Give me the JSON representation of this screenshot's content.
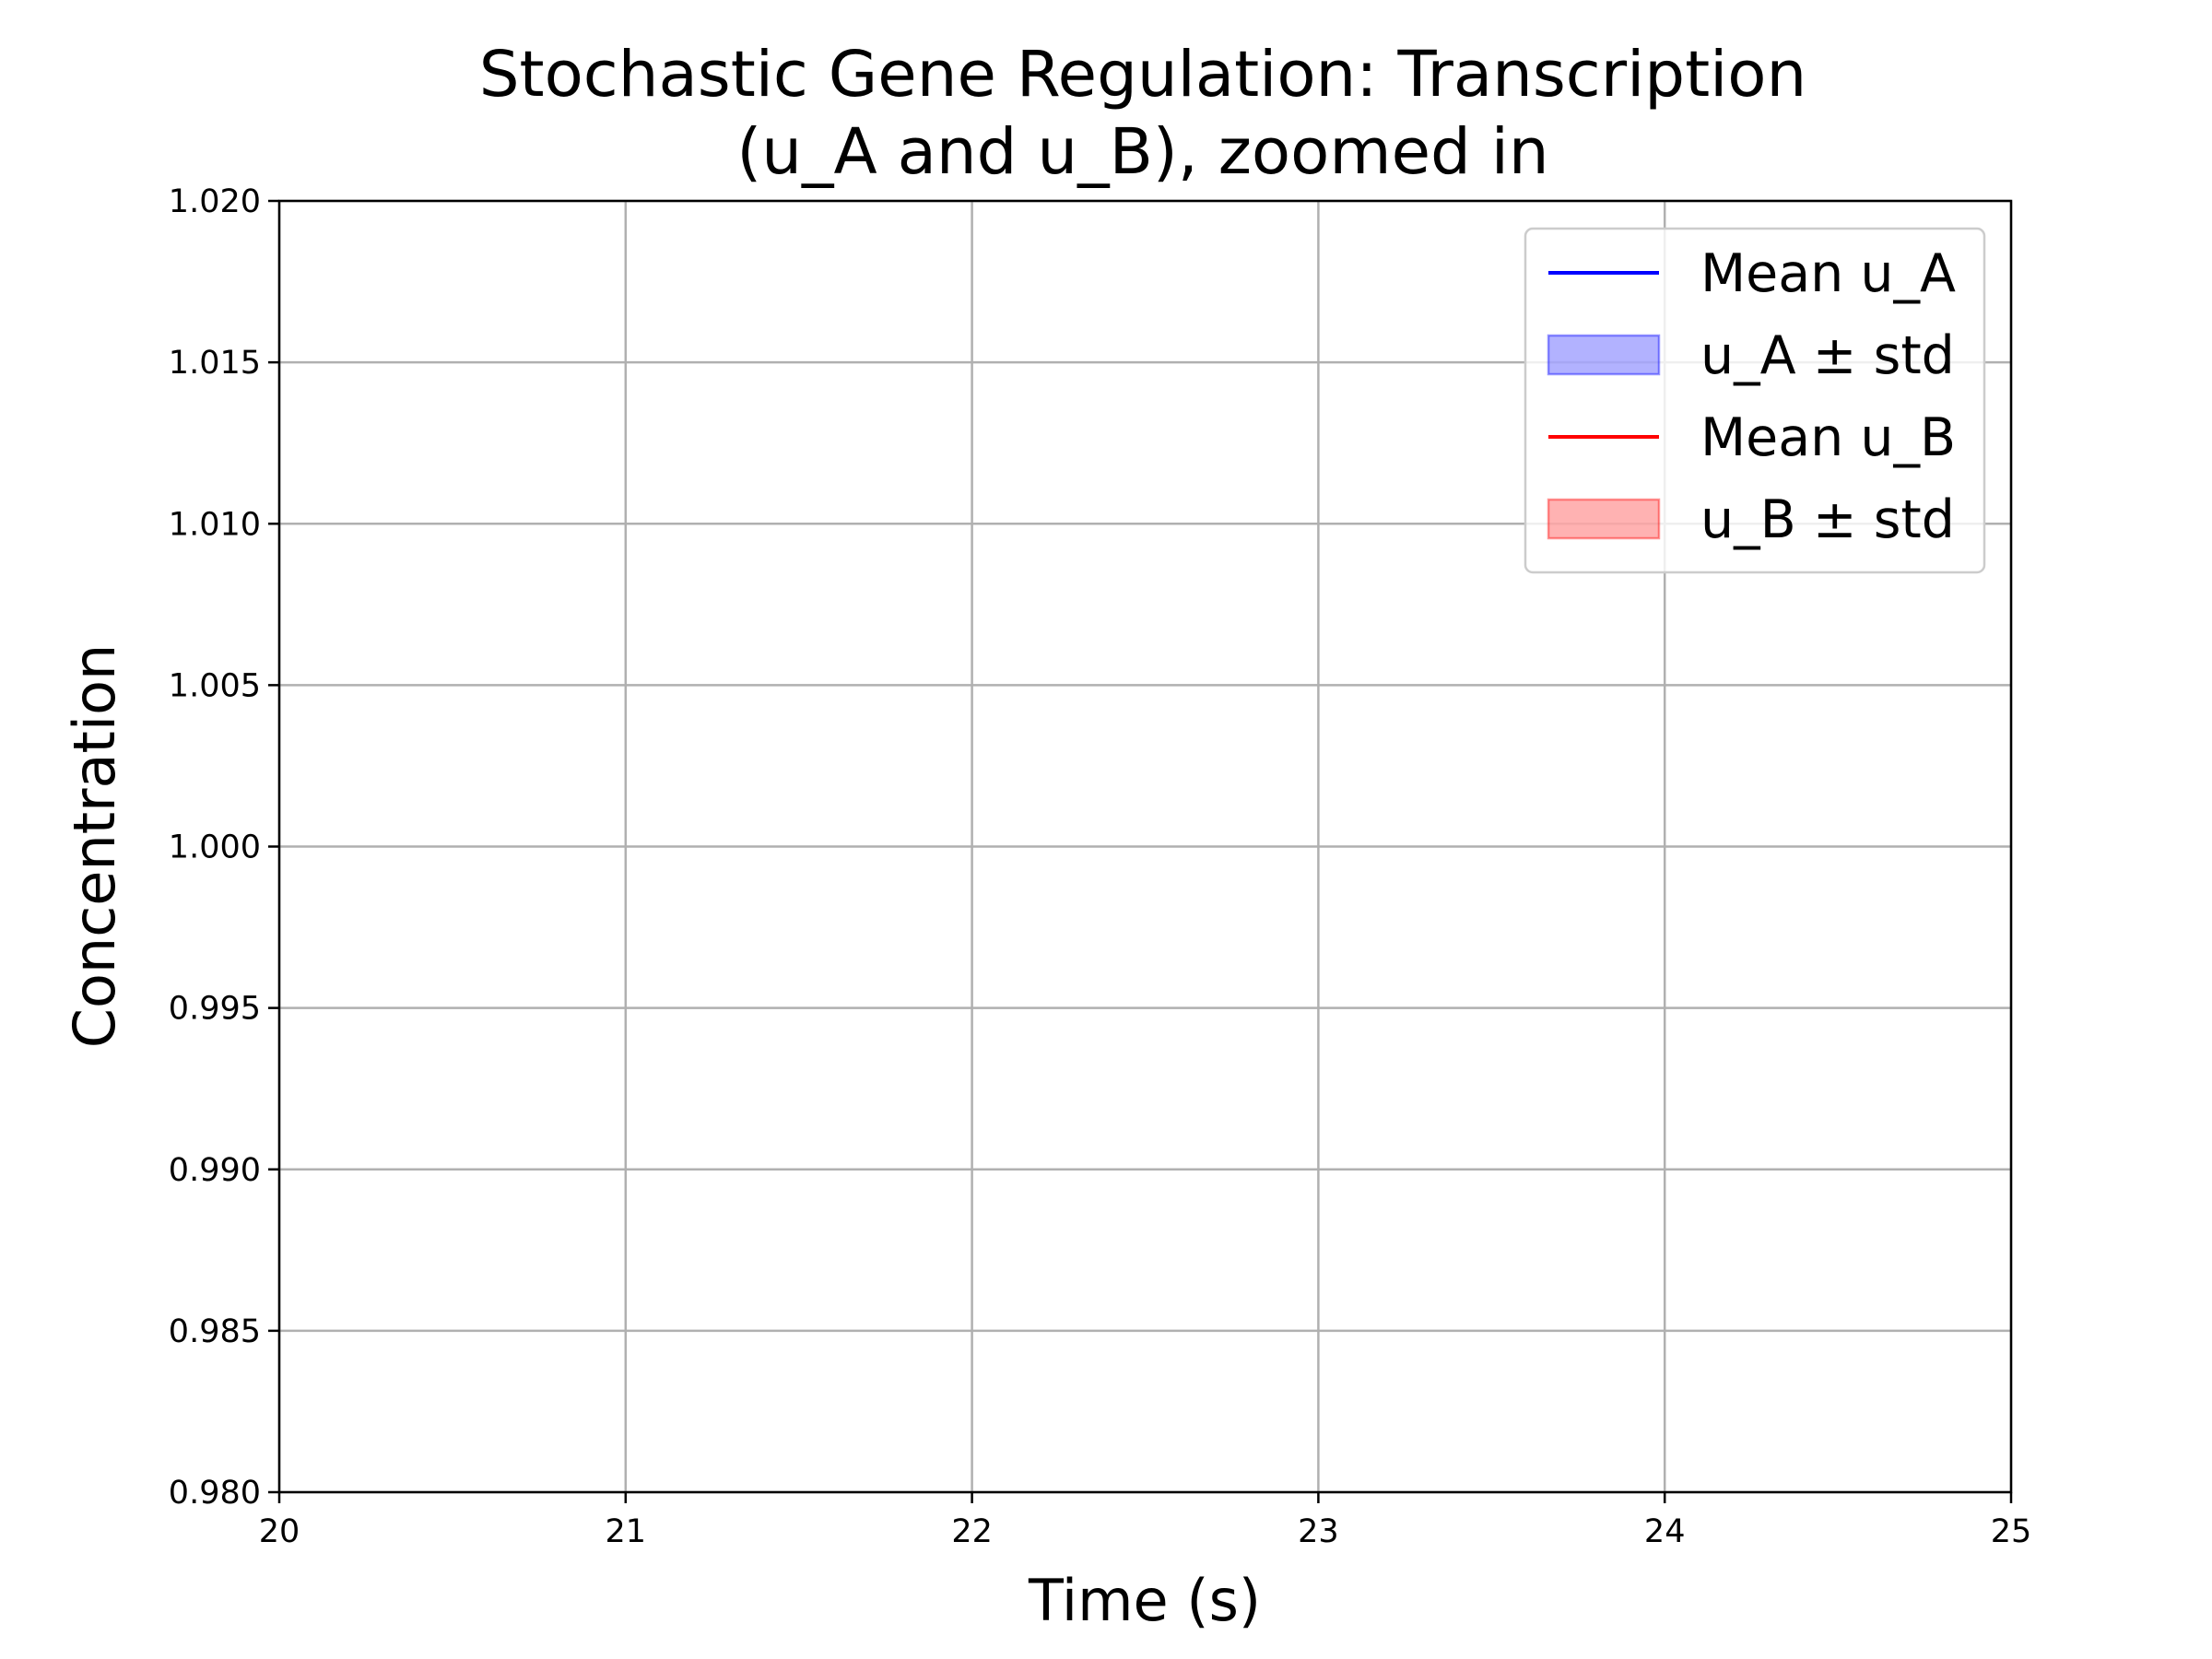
{
  "chart_data": {
    "type": "line",
    "title_lines": [
      "Stochastic Gene Regulation: Transcription",
      "(u_A and u_B), zoomed in"
    ],
    "xlabel": "Time (s)",
    "ylabel": "Concentration",
    "xlim": [
      20,
      25
    ],
    "ylim": [
      0.98,
      1.02
    ],
    "xticks": [
      "20",
      "21",
      "22",
      "23",
      "24",
      "25"
    ],
    "yticks": [
      "0.980",
      "0.985",
      "0.990",
      "0.995",
      "1.000",
      "1.005",
      "1.010",
      "1.015",
      "1.020"
    ],
    "grid": true,
    "legend_position": "top-right",
    "series": [
      {
        "name": "Mean u_A",
        "kind": "line",
        "color": "#0000ff",
        "x": [],
        "y": []
      },
      {
        "name": "u_A ± std",
        "kind": "band",
        "color": "#0000ff",
        "opacity": 0.3,
        "x": [],
        "lower": [],
        "upper": []
      },
      {
        "name": "Mean u_B",
        "kind": "line",
        "color": "#ff0000",
        "x": [],
        "y": []
      },
      {
        "name": "u_B ± std",
        "kind": "band",
        "color": "#ff0000",
        "opacity": 0.3,
        "x": [],
        "lower": [],
        "upper": []
      }
    ]
  }
}
